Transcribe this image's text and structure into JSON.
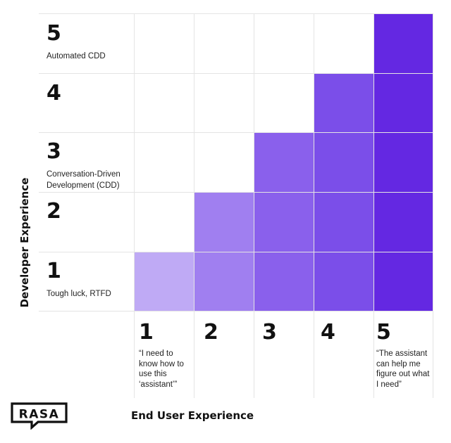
{
  "y_axis": {
    "title": "Developer Experience",
    "levels": [
      {
        "level": "1",
        "label": "Tough luck, RTFD"
      },
      {
        "level": "2",
        "label": ""
      },
      {
        "level": "3",
        "label": "Conversation-Driven Development (CDD)"
      },
      {
        "level": "4",
        "label": ""
      },
      {
        "level": "5",
        "label": "Automated CDD"
      }
    ]
  },
  "x_axis": {
    "title": "End User Experience",
    "levels": [
      {
        "level": "1",
        "label": "“I need to know how to use this ‘assistant’”"
      },
      {
        "level": "2",
        "label": ""
      },
      {
        "level": "3",
        "label": ""
      },
      {
        "level": "4",
        "label": ""
      },
      {
        "level": "5",
        "label": "“The assistant can help me figure out what I need”"
      }
    ]
  },
  "cell_colors": [
    "#bfaaf5",
    "#a07ff0",
    "#8a60ec",
    "#7b4ee9",
    "#6428e2"
  ],
  "grid_line_color": "#e4e4e4",
  "logo": {
    "text": "RASA",
    "icon": "rasa-logo"
  }
}
